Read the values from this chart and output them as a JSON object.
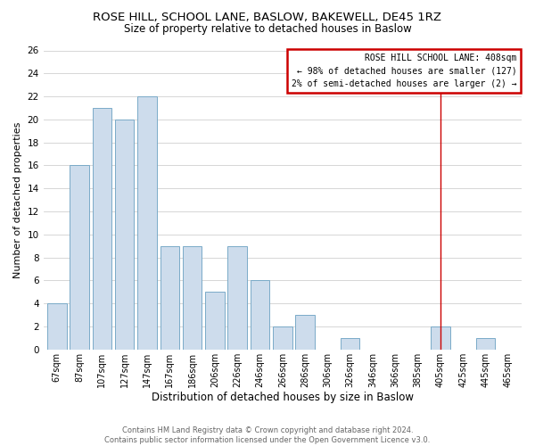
{
  "title": "ROSE HILL, SCHOOL LANE, BASLOW, BAKEWELL, DE45 1RZ",
  "subtitle": "Size of property relative to detached houses in Baslow",
  "xlabel": "Distribution of detached houses by size in Baslow",
  "ylabel": "Number of detached properties",
  "bar_color": "#cddcec",
  "bar_edge_color": "#7aaac8",
  "categories": [
    "67sqm",
    "87sqm",
    "107sqm",
    "127sqm",
    "147sqm",
    "167sqm",
    "186sqm",
    "206sqm",
    "226sqm",
    "246sqm",
    "266sqm",
    "286sqm",
    "306sqm",
    "326sqm",
    "346sqm",
    "366sqm",
    "385sqm",
    "405sqm",
    "425sqm",
    "445sqm",
    "465sqm"
  ],
  "values": [
    4,
    16,
    21,
    20,
    22,
    9,
    9,
    5,
    9,
    6,
    2,
    3,
    0,
    1,
    0,
    0,
    0,
    2,
    0,
    1,
    0
  ],
  "ylim": [
    0,
    26
  ],
  "yticks": [
    0,
    2,
    4,
    6,
    8,
    10,
    12,
    14,
    16,
    18,
    20,
    22,
    24,
    26
  ],
  "property_line_idx": 17,
  "annotation_text_line1": "ROSE HILL SCHOOL LANE: 408sqm",
  "annotation_text_line2": "← 98% of detached houses are smaller (127)",
  "annotation_text_line3": "2% of semi-detached houses are larger (2) →",
  "annotation_box_color": "#cc0000",
  "footer_line1": "Contains HM Land Registry data © Crown copyright and database right 2024.",
  "footer_line2": "Contains public sector information licensed under the Open Government Licence v3.0.",
  "grid_color": "#d0d0d0",
  "background_color": "#ffffff",
  "title_fontsize": 9.5,
  "subtitle_fontsize": 8.5
}
